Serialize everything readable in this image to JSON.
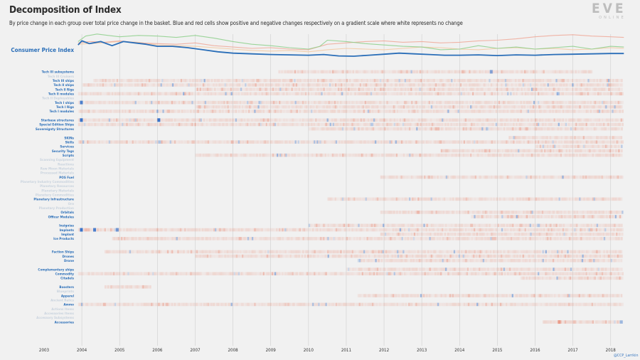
{
  "title": "Decomposition of Index",
  "subtitle": "By price change in each group over total price change in the basket. Blue and red cells show positive and negative changes respectively on a gradient scale where white represents no change",
  "logo": {
    "wordmark": "EVE",
    "tagline": "ONLINE"
  },
  "credit": "@CCP_Larrikin",
  "colors": {
    "cpi": "#2a6eb8",
    "positive": "#3a73c9",
    "negative": "#e8826a",
    "grid": "#cfcfcf",
    "label_active": "#2a6eb8",
    "label_inactive": "#c9d3de"
  },
  "chart_data": {
    "type": "heatmap",
    "title": "Decomposition of Index",
    "x_ticks": [
      "2003",
      "2004",
      "2005",
      "2006",
      "2007",
      "2008",
      "2009",
      "2010",
      "2011",
      "2012",
      "2013",
      "2014",
      "2015",
      "2016",
      "2017",
      "2018"
    ],
    "xlim": [
      2003,
      2018.4
    ],
    "line_series": [
      {
        "name": "Consumer Price Index",
        "color": "#2a6eb8",
        "emphasis": true,
        "x": [
          2003.9,
          2004.0,
          2004.2,
          2004.5,
          2004.8,
          2005.1,
          2005.4,
          2005.7,
          2006.0,
          2006.4,
          2006.8,
          2007.2,
          2007.6,
          2008.0,
          2008.5,
          2009.0,
          2009.5,
          2010.0,
          2010.4,
          2010.8,
          2011.2,
          2011.6,
          2012.0,
          2012.4,
          2012.8,
          2013.2,
          2013.6,
          2014.0,
          2014.5,
          2015.0,
          2015.5,
          2016.0,
          2016.5,
          2017.0,
          2017.5,
          2018.0,
          2018.35
        ],
        "y": [
          60,
          72,
          64,
          70,
          58,
          70,
          66,
          62,
          56,
          56,
          52,
          46,
          40,
          36,
          34,
          32,
          31,
          30,
          32,
          28,
          27,
          30,
          33,
          36,
          34,
          32,
          30,
          30,
          31,
          29,
          31,
          30,
          32,
          33,
          34,
          35,
          35
        ]
      },
      {
        "name": "",
        "color": "#8ccf8a",
        "x": [
          2003.9,
          2004.1,
          2004.4,
          2004.7,
          2005.0,
          2005.5,
          2006.0,
          2006.5,
          2007.0,
          2007.5,
          2008.0,
          2008.5,
          2009.0,
          2009.5,
          2010.0,
          2010.3,
          2010.5,
          2011.0,
          2011.5,
          2012.0,
          2012.5,
          2013.0,
          2013.5,
          2014.0,
          2014.5,
          2015.0,
          2015.5,
          2016.0,
          2016.5,
          2017.0,
          2017.5,
          2018.0,
          2018.35
        ],
        "y": [
          70,
          86,
          92,
          88,
          84,
          88,
          86,
          82,
          88,
          80,
          70,
          62,
          58,
          52,
          48,
          56,
          74,
          70,
          64,
          60,
          56,
          54,
          46,
          48,
          58,
          50,
          54,
          48,
          52,
          56,
          48,
          56,
          54
        ]
      },
      {
        "name": "",
        "color": "#f0a898",
        "x": [
          2003.9,
          2004.2,
          2004.6,
          2005.0,
          2005.5,
          2006.0,
          2006.5,
          2007.0,
          2007.5,
          2008.0,
          2008.5,
          2009.0,
          2009.5,
          2010.0,
          2010.5,
          2011.0,
          2011.5,
          2012.0,
          2012.5,
          2013.0,
          2013.5,
          2014.0,
          2014.5,
          2015.0,
          2015.5,
          2016.0,
          2016.5,
          2017.0,
          2017.5,
          2018.0,
          2018.35
        ],
        "y": [
          66,
          70,
          68,
          72,
          66,
          64,
          62,
          66,
          58,
          54,
          50,
          52,
          48,
          46,
          62,
          66,
          70,
          72,
          68,
          70,
          66,
          68,
          72,
          74,
          78,
          84,
          88,
          90,
          86,
          84,
          82
        ]
      },
      {
        "name": "",
        "color": "#f3c8a0",
        "x": [
          2003.9,
          2004.5,
          2005.0,
          2005.5,
          2006.0,
          2006.5,
          2007.0,
          2007.5,
          2008.0,
          2008.5,
          2009.0,
          2009.5,
          2010.0,
          2010.5,
          2011.0,
          2011.5,
          2012.0,
          2012.5,
          2013.0,
          2013.5,
          2014.0,
          2014.5,
          2015.0,
          2015.5,
          2016.0,
          2016.5,
          2017.0,
          2017.5,
          2018.0,
          2018.35
        ],
        "y": [
          62,
          66,
          70,
          68,
          60,
          58,
          56,
          52,
          48,
          44,
          42,
          44,
          40,
          46,
          50,
          48,
          46,
          50,
          54,
          52,
          48,
          46,
          50,
          52,
          48,
          50,
          46,
          48,
          52,
          50
        ]
      }
    ],
    "rows": [
      {
        "label": "Tech III subsystems",
        "active": true,
        "start": 2009.2,
        "end": 2017.5
      },
      {
        "label": "Tech III Cruisers",
        "active": false,
        "start": 0,
        "end": 0
      },
      {
        "label": "Tech III ships",
        "active": true,
        "start": 2004.3,
        "end": 2018.3
      },
      {
        "label": "Tech II ships",
        "active": true,
        "start": 2004.0,
        "end": 2018.3
      },
      {
        "label": "Tech II Rigs",
        "active": true,
        "start": 2007.0,
        "end": 2018.3
      },
      {
        "label": "Tech II modules",
        "active": true,
        "start": 2003.9,
        "end": 2018.3
      },
      {
        "label": "Tech II Deployables",
        "active": false,
        "start": 0,
        "end": 0
      },
      {
        "label": "Tech I ships",
        "active": true,
        "start": 2003.9,
        "end": 2018.3
      },
      {
        "label": "Tech I Rigs",
        "active": true,
        "start": 2007.0,
        "end": 2018.3
      },
      {
        "label": "Tech I modules",
        "active": true,
        "start": 2003.9,
        "end": 2018.3
      },
      {
        "label": "",
        "active": false,
        "start": 0,
        "end": 0
      },
      {
        "label": "Starbase structures",
        "active": true,
        "start": 2003.9,
        "end": 2018.3
      },
      {
        "label": "Special Edition Ships",
        "active": true,
        "start": 2003.9,
        "end": 2018.3
      },
      {
        "label": "Sovereignty Structures",
        "active": true,
        "start": 2010.0,
        "end": 2018.3
      },
      {
        "label": "",
        "active": false,
        "start": 0,
        "end": 0
      },
      {
        "label": "SKINs",
        "active": true,
        "start": 2015.3,
        "end": 2018.3
      },
      {
        "label": "Skills",
        "active": true,
        "start": 2003.9,
        "end": 2018.3
      },
      {
        "label": "Services",
        "active": true,
        "start": 2016.0,
        "end": 2018.3
      },
      {
        "label": "Security Tags",
        "active": true,
        "start": 2013.5,
        "end": 2018.3
      },
      {
        "label": "Scripts",
        "active": true,
        "start": 2007.0,
        "end": 2018.3
      },
      {
        "label": "Scanning Equipment",
        "active": false,
        "start": 0,
        "end": 0
      },
      {
        "label": "Reactions",
        "active": false,
        "start": 0,
        "end": 0
      },
      {
        "label": "Raw Moon Materials",
        "active": false,
        "start": 0,
        "end": 0
      },
      {
        "label": "Processed Materials",
        "active": false,
        "start": 0,
        "end": 0
      },
      {
        "label": "POS Fuel",
        "active": true,
        "start": 2011.9,
        "end": 2018.3
      },
      {
        "label": "Planetary Industry Commodities",
        "active": false,
        "start": 0,
        "end": 0
      },
      {
        "label": "Planetary Resources",
        "active": false,
        "start": 0,
        "end": 0
      },
      {
        "label": "Planetary Materials",
        "active": false,
        "start": 0,
        "end": 0
      },
      {
        "label": "Planetary Commodities",
        "active": false,
        "start": 0,
        "end": 0
      },
      {
        "label": "Planetary Infrastructure",
        "active": true,
        "start": 2010.5,
        "end": 2018.3
      },
      {
        "label": "Ore",
        "active": false,
        "start": 0,
        "end": 0
      },
      {
        "label": "Planetary Production",
        "active": false,
        "start": 0,
        "end": 0
      },
      {
        "label": "Orbitals",
        "active": true,
        "start": 2011.9,
        "end": 2018.3
      },
      {
        "label": "Officer Modules",
        "active": true,
        "start": 2014.3,
        "end": 2018.3
      },
      {
        "label": "",
        "active": false,
        "start": 0,
        "end": 0
      },
      {
        "label": "Insignias",
        "active": true,
        "start": 2010.0,
        "end": 2018.3
      },
      {
        "label": "Implants",
        "active": true,
        "start": 2003.9,
        "end": 2018.3
      },
      {
        "label": "Implant",
        "active": true,
        "start": 2011.9,
        "end": 2018.3
      },
      {
        "label": "Ice Products",
        "active": true,
        "start": 2004.8,
        "end": 2018.3
      },
      {
        "label": "",
        "active": false,
        "start": 0,
        "end": 0
      },
      {
        "label": "",
        "active": false,
        "start": 0,
        "end": 0
      },
      {
        "label": "Faction Ships",
        "active": true,
        "start": 2004.6,
        "end": 2018.3
      },
      {
        "label": "Drones",
        "active": true,
        "start": 2007.0,
        "end": 2018.3
      },
      {
        "label": "Drone",
        "active": true,
        "start": 2011.3,
        "end": 2018.3
      },
      {
        "label": "",
        "active": false,
        "start": 0,
        "end": 0
      },
      {
        "label": "Complementary ships",
        "active": true,
        "start": 2011.0,
        "end": 2018.3
      },
      {
        "label": "Commodity",
        "active": true,
        "start": 2003.9,
        "end": 2018.3
      },
      {
        "label": "Citadels",
        "active": true,
        "start": 2015.6,
        "end": 2018.3
      },
      {
        "label": "",
        "active": false,
        "start": 0,
        "end": 0
      },
      {
        "label": "Boosters",
        "active": true,
        "start": 2004.6,
        "end": 2005.8
      },
      {
        "label": "Blueprints",
        "active": false,
        "start": 0,
        "end": 0
      },
      {
        "label": "Apparel",
        "active": true,
        "start": 2011.3,
        "end": 2018.3
      },
      {
        "label": "Ancient Relics",
        "active": false,
        "start": 0,
        "end": 0
      },
      {
        "label": "Ammo",
        "active": true,
        "start": 2003.9,
        "end": 2018.3
      },
      {
        "label": "Actions Items",
        "active": false,
        "start": 0,
        "end": 0
      },
      {
        "label": "Accessories Items",
        "active": false,
        "start": 0,
        "end": 0
      },
      {
        "label": "Accessory Subsystems",
        "active": false,
        "start": 0,
        "end": 0
      },
      {
        "label": "Accessories",
        "active": true,
        "start": 2016.2,
        "end": 2018.3
      }
    ],
    "highlights": [
      {
        "row": "Starbase structures",
        "x": 2003.95,
        "value": 1.0
      },
      {
        "row": "Starbase structures",
        "x": 2006.0,
        "value": 1.0
      },
      {
        "row": "Implants",
        "x": 2003.95,
        "value": 1.0
      },
      {
        "row": "Implants",
        "x": 2004.3,
        "value": 0.9
      },
      {
        "row": "Implants",
        "x": 2004.9,
        "value": 0.7
      },
      {
        "row": "Tech I ships",
        "x": 2003.95,
        "value": 0.9
      },
      {
        "row": "Tech III subsystems",
        "x": 2014.8,
        "value": 0.6
      },
      {
        "row": "Accessories",
        "x": 2016.6,
        "value": -0.7
      }
    ]
  }
}
